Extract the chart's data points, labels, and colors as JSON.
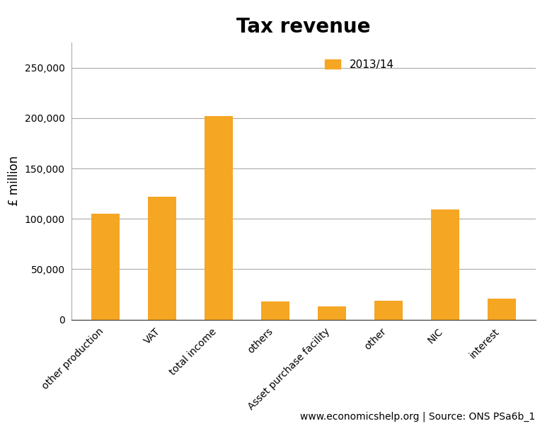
{
  "title": "Tax revenue",
  "categories": [
    "other production",
    "VAT",
    "total income",
    "others",
    "Asset purchase facility",
    "other",
    "NIC",
    "interest"
  ],
  "values": [
    105000,
    122000,
    202000,
    18000,
    13000,
    18500,
    109000,
    21000
  ],
  "bar_color": "#F5A623",
  "ylabel": "£ million",
  "ylim": [
    0,
    275000
  ],
  "yticks": [
    0,
    50000,
    100000,
    150000,
    200000,
    250000
  ],
  "legend_label": "2013/14",
  "footnote": "www.economicshelp.org | Source: ONS PSa6b_1",
  "title_fontsize": 20,
  "ylabel_fontsize": 12,
  "tick_fontsize": 10,
  "legend_fontsize": 11,
  "footnote_fontsize": 10,
  "bar_width": 0.5
}
